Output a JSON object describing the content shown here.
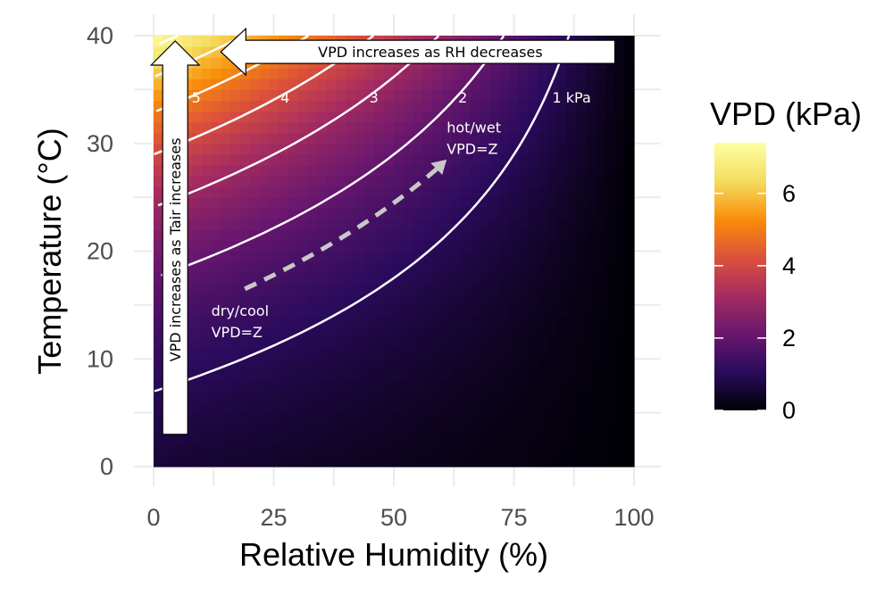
{
  "chart_data": {
    "type": "heatmap",
    "title": "",
    "xlabel": "Relative Humidity (%)",
    "ylabel": "Temperature (°C)",
    "xlim": [
      0,
      100
    ],
    "ylim": [
      0,
      40
    ],
    "x_ticks": [
      "0",
      "25",
      "50",
      "75",
      "100"
    ],
    "y_ticks": [
      "0",
      "10",
      "20",
      "30",
      "40"
    ],
    "z_variable": "VPD",
    "legend": {
      "title": "VPD (kPa)",
      "ticks": [
        "0",
        "2",
        "4",
        "6"
      ],
      "range": [
        0,
        7.4
      ],
      "position": "right",
      "colors": [
        "#000004",
        "#2a0b5c",
        "#6a176e",
        "#a52c60",
        "#dd513a",
        "#f98e09",
        "#f4dd5f",
        "#fcffa4"
      ]
    },
    "contours": [
      {
        "level": 1,
        "label": "1 kPa"
      },
      {
        "level": 2,
        "label": "2"
      },
      {
        "level": 3,
        "label": "3"
      },
      {
        "level": 4,
        "label": "4"
      },
      {
        "level": 5,
        "label": "5"
      },
      {
        "level": 6,
        "label": ""
      },
      {
        "level": 7,
        "label": ""
      }
    ],
    "contour_color": "#ffffff",
    "annotations": {
      "dry_cool": {
        "line1": "dry/cool",
        "line2": "VPD=Z",
        "rh": 12,
        "temp": 14
      },
      "hot_wet": {
        "line1": "hot/wet",
        "line2": "VPD=Z",
        "rh": 61,
        "temp": 31
      },
      "dashed_arrow": {
        "from": {
          "rh": 19,
          "temp": 16.5
        },
        "to": {
          "rh": 61,
          "temp": 28.5
        },
        "color": "#c8c8c8"
      },
      "rh_arrow": {
        "text": "VPD increases as RH decreases",
        "rh_from": 96,
        "rh_to": 14,
        "temp": 38.5
      },
      "tair_arrow": {
        "text": "VPD increases as Tair increases",
        "rh": 4.5,
        "temp_from": 3,
        "temp_to": 39.5
      }
    }
  }
}
